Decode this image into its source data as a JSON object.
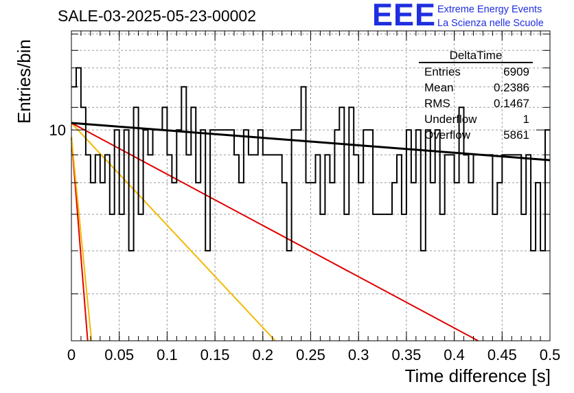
{
  "title": "SALE-03-2025-05-23-00002",
  "logo": {
    "mark": "EEE",
    "line1": "Extreme Energy Events",
    "line2": "La Scienza nelle Scuole"
  },
  "stats": {
    "name": "DeltaTime",
    "rows": [
      {
        "label": "Entries",
        "value": "6909"
      },
      {
        "label": "Mean",
        "value": "0.2386"
      },
      {
        "label": "RMS",
        "value": "0.1467"
      },
      {
        "label": "Underflow",
        "value": "1"
      },
      {
        "label": "Overflow",
        "value": "5861"
      }
    ]
  },
  "colors": {
    "histogram": "#000000",
    "fit_total": "#000000",
    "fit_red": "#e00000",
    "fit_yellow": "#f5b800",
    "grid": "#9a9a9a"
  },
  "chart_data": {
    "type": "line",
    "xlabel": "Time difference [s]",
    "ylabel": "Entries/bin",
    "xlim": [
      0,
      0.5
    ],
    "ylim": [
      4.1,
      15.2
    ],
    "log_y": true,
    "grid": true,
    "x_ticks": [
      "0",
      "0.05",
      "0.1",
      "0.15",
      "0.2",
      "0.25",
      "0.3",
      "0.35",
      "0.4",
      "0.45",
      "0.5"
    ],
    "y_tick_labels": [
      "10"
    ],
    "bin_width": 0.005,
    "histogram": [
      12,
      13,
      11,
      9,
      8,
      9,
      8,
      9,
      7,
      10,
      7,
      10,
      6,
      11,
      7,
      10,
      9,
      10,
      10,
      11,
      9,
      8,
      10,
      12,
      9,
      11,
      8,
      10,
      6,
      10,
      10,
      10,
      10,
      10,
      9,
      8,
      10,
      9,
      9,
      10,
      9,
      9,
      9,
      9,
      8,
      6,
      10,
      10,
      12,
      8,
      8,
      9,
      7,
      9,
      8,
      10,
      11,
      7,
      11,
      9,
      8,
      10,
      10,
      7,
      7,
      7,
      7,
      8,
      9,
      7,
      10,
      8,
      10,
      6,
      10,
      8,
      10,
      7,
      9,
      9,
      8,
      11,
      9,
      8,
      9,
      9,
      9,
      9,
      7,
      8,
      9,
      9,
      9,
      9,
      7,
      9,
      6,
      8,
      6,
      10
    ],
    "fits": [
      {
        "color": "black",
        "x": [
          0,
          0.5
        ],
        "y": [
          10.3,
          8.8
        ]
      },
      {
        "color": "red",
        "x": [
          0,
          0.425
        ],
        "y": [
          10.3,
          4.1
        ]
      },
      {
        "color": "yellow",
        "x": [
          0,
          0.213
        ],
        "y": [
          10.3,
          4.1
        ]
      },
      {
        "color": "yellow",
        "x": [
          0,
          0.021
        ],
        "y": [
          9.7,
          4.1
        ]
      },
      {
        "color": "red",
        "x": [
          0,
          0.017
        ],
        "y": [
          9.7,
          4.1
        ]
      }
    ]
  }
}
